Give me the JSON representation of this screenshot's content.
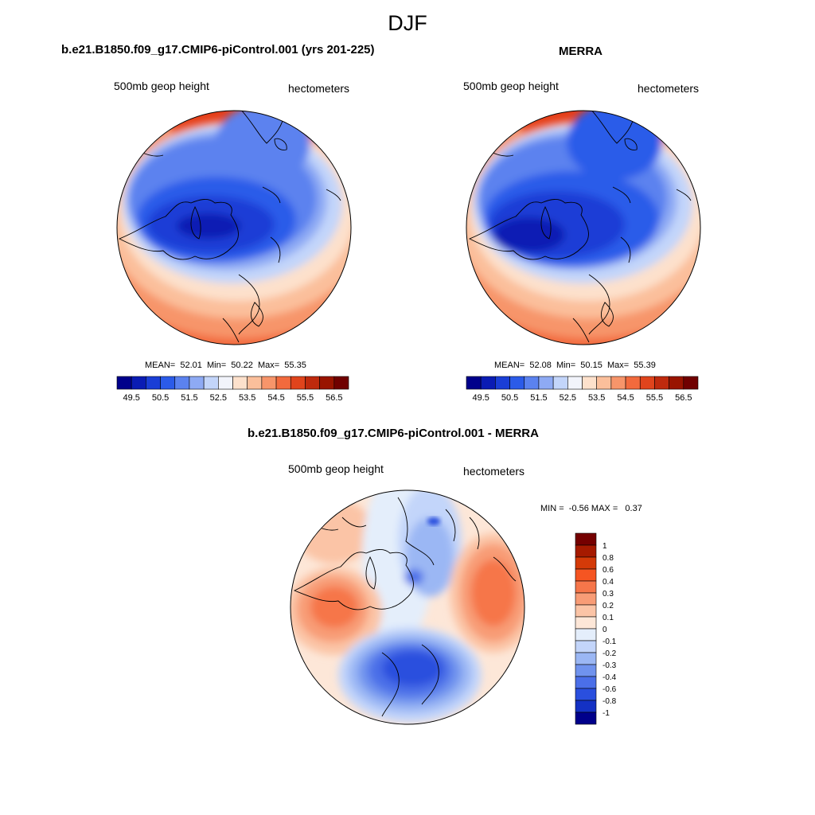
{
  "figure_title": "DJF",
  "panels": [
    {
      "title": "b.e21.B1850.f09_g17.CMIP6-piControl.001 (yrs 201-225)",
      "left_label": "500mb geop height",
      "right_label": "hectometers",
      "stats": {
        "mean_label": "MEAN=",
        "mean": "52.01",
        "min_label": "Min=",
        "min": "50.22",
        "max_label": "Max=",
        "max": "55.35"
      }
    },
    {
      "title": "MERRA",
      "left_label": "500mb geop height",
      "right_label": "hectometers",
      "stats": {
        "mean_label": "MEAN=",
        "mean": "52.08",
        "min_label": "Min=",
        "min": "50.15",
        "max_label": "Max=",
        "max": "55.39"
      }
    },
    {
      "title": "b.e21.B1850.f09_g17.CMIP6-piControl.001 - MERRA",
      "left_label": "500mb geop height",
      "right_label": "hectometers",
      "stats": {
        "min_label": "MIN =",
        "min": "-0.56",
        "max_label": "MAX =",
        "max": "0.37"
      }
    }
  ],
  "colorbar_field": {
    "orientation": "horizontal",
    "tick_labels": [
      "49.5",
      "50.5",
      "51.5",
      "52.5",
      "53.5",
      "54.5",
      "55.5",
      "56.5"
    ],
    "colors": [
      "#00008b",
      "#0a1cb4",
      "#1a3ed6",
      "#2b5be9",
      "#5b82ef",
      "#8eaaf4",
      "#c3d5fa",
      "#f2f4fb",
      "#fde1cc",
      "#fbbf9b",
      "#f7956a",
      "#f26a3d",
      "#e0441c",
      "#bf2a0d",
      "#991400",
      "#700000"
    ]
  },
  "colorbar_diff": {
    "orientation": "vertical",
    "tick_labels": [
      "1",
      "0.8",
      "0.6",
      "0.4",
      "0.3",
      "0.2",
      "0.1",
      "0",
      "-0.1",
      "-0.2",
      "-0.3",
      "-0.4",
      "-0.6",
      "-0.8",
      "-1"
    ],
    "colors": [
      "#750000",
      "#a61a00",
      "#d43a08",
      "#f55522",
      "#f6764a",
      "#f89c76",
      "#fbc4a6",
      "#fde7d8",
      "#e4eefb",
      "#c3d5fa",
      "#9bb7f4",
      "#7093ee",
      "#4b6fe8",
      "#2a4fde",
      "#1431c4",
      "#00008b"
    ]
  }
}
